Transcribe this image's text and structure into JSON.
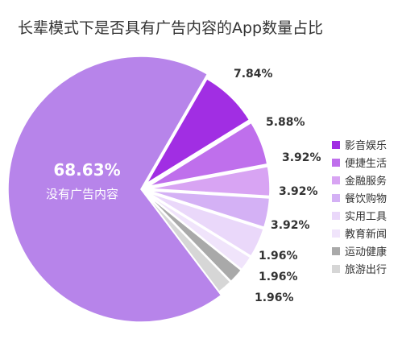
{
  "chart_data": {
    "type": "pie",
    "title": "长辈模式下是否具有广告内容的App数量占比",
    "slices": [
      {
        "label": "影音娱乐",
        "value": 7.84,
        "value_label": "7.84%",
        "color": "#a12ee3"
      },
      {
        "label": "便捷生活",
        "value": 5.88,
        "value_label": "5.88%",
        "color": "#bf6fec"
      },
      {
        "label": "金融服务",
        "value": 3.92,
        "value_label": "3.92%",
        "color": "#d8a4f3"
      },
      {
        "label": "餐饮购物",
        "value": 3.92,
        "value_label": "3.92%",
        "color": "#d4b1f5"
      },
      {
        "label": "实用工具",
        "value": 3.92,
        "value_label": "3.92%",
        "color": "#ead8fa"
      },
      {
        "label": "教育新闻",
        "value": 1.96,
        "value_label": "1.96%",
        "color": "#f0e4fb"
      },
      {
        "label": "运动健康",
        "value": 1.96,
        "value_label": "1.96%",
        "color": "#a9a9a9"
      },
      {
        "label": "旅游出行",
        "value": 1.96,
        "value_label": "1.96%",
        "color": "#d6d6d6"
      },
      {
        "label": "没有广告内容",
        "value": 68.63,
        "value_label": "68.63%",
        "color": "#b784ea"
      }
    ],
    "legend_position": "right"
  }
}
